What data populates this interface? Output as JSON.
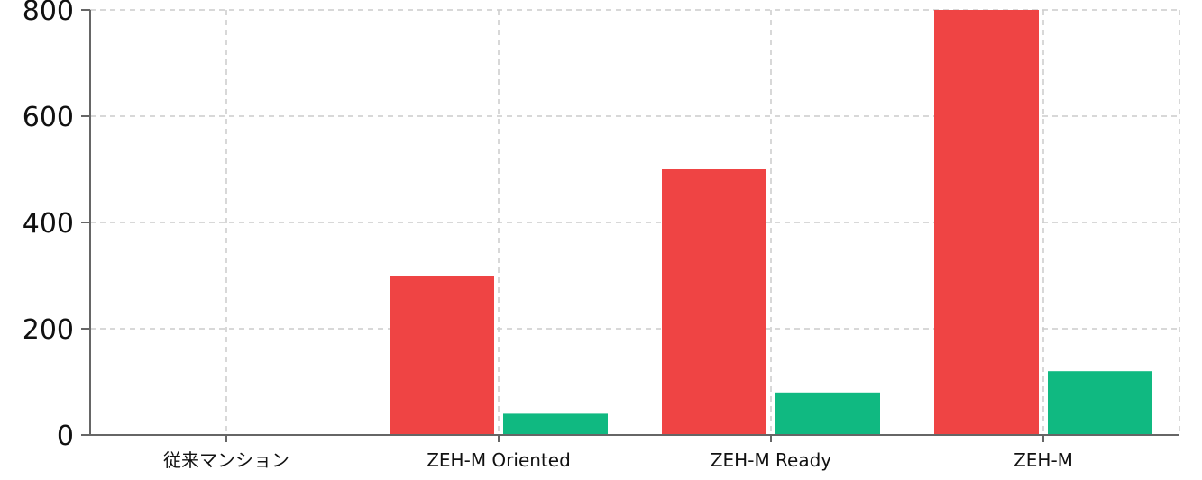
{
  "chart_data": {
    "type": "bar",
    "categories": [
      "従来マンション",
      "ZEH-M Oriented",
      "ZEH-M Ready",
      "ZEH-M"
    ],
    "series": [
      {
        "values": [
          0,
          300,
          500,
          800
        ],
        "color": "#ef4444"
      },
      {
        "values": [
          0,
          40,
          80,
          120
        ],
        "color": "#10b981"
      }
    ],
    "yticks": [
      0,
      200,
      400,
      600,
      800
    ],
    "ylim": [
      0,
      800
    ],
    "grid": true
  }
}
